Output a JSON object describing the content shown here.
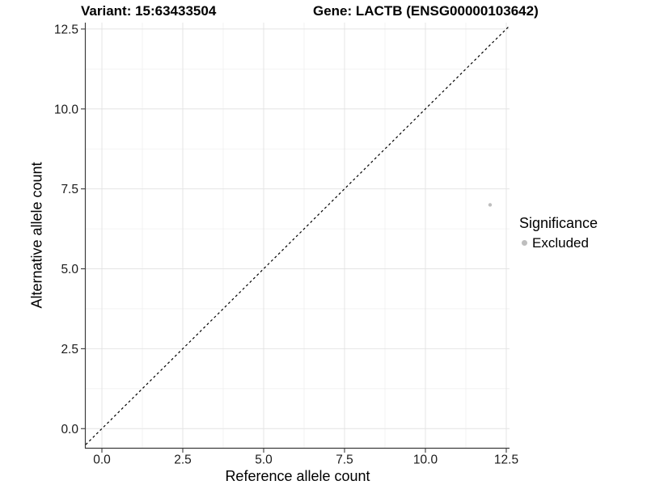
{
  "chart_data": {
    "type": "scatter",
    "title_left": "Variant: 15:63433504",
    "title_right": "Gene: LACTB (ENSG00000103642)",
    "xlabel": "Reference allele count",
    "ylabel": "Alternative allele count",
    "xlim": [
      -0.5,
      12.6
    ],
    "ylim": [
      -0.6,
      12.7
    ],
    "x_tick_labels": [
      "0.0",
      "2.5",
      "5.0",
      "7.5",
      "10.0",
      "12.5"
    ],
    "x_tick_values": [
      0,
      2.5,
      5,
      7.5,
      10,
      12.5
    ],
    "y_tick_labels": [
      "0.0",
      "2.5",
      "5.0",
      "7.5",
      "10.0",
      "12.5"
    ],
    "y_tick_values": [
      0,
      2.5,
      5,
      7.5,
      10,
      12.5
    ],
    "x_minor_values": [
      1.25,
      3.75,
      6.25,
      8.75,
      11.25
    ],
    "y_minor_values": [
      1.25,
      3.75,
      6.25,
      8.75,
      11.25
    ],
    "grid": "major+minor",
    "identity_line": {
      "slope": 1,
      "intercept": 0,
      "style": "dashed"
    },
    "series": [
      {
        "name": "Excluded",
        "color": "#bebebe",
        "points": [
          {
            "x": 12,
            "y": 7
          }
        ]
      }
    ],
    "legend": {
      "title": "Significance",
      "position": "right",
      "items": [
        {
          "label": "Excluded",
          "color": "#bebebe"
        }
      ]
    }
  },
  "colors": {
    "background": "#ffffff",
    "major_grid": "#e4e4e4",
    "minor_grid": "#f0f0f0",
    "axis_line": "#3c3c3c",
    "tick_mark": "#3c3c3c",
    "tick_label": "#1a1a1a",
    "identity_line": "#000000"
  }
}
